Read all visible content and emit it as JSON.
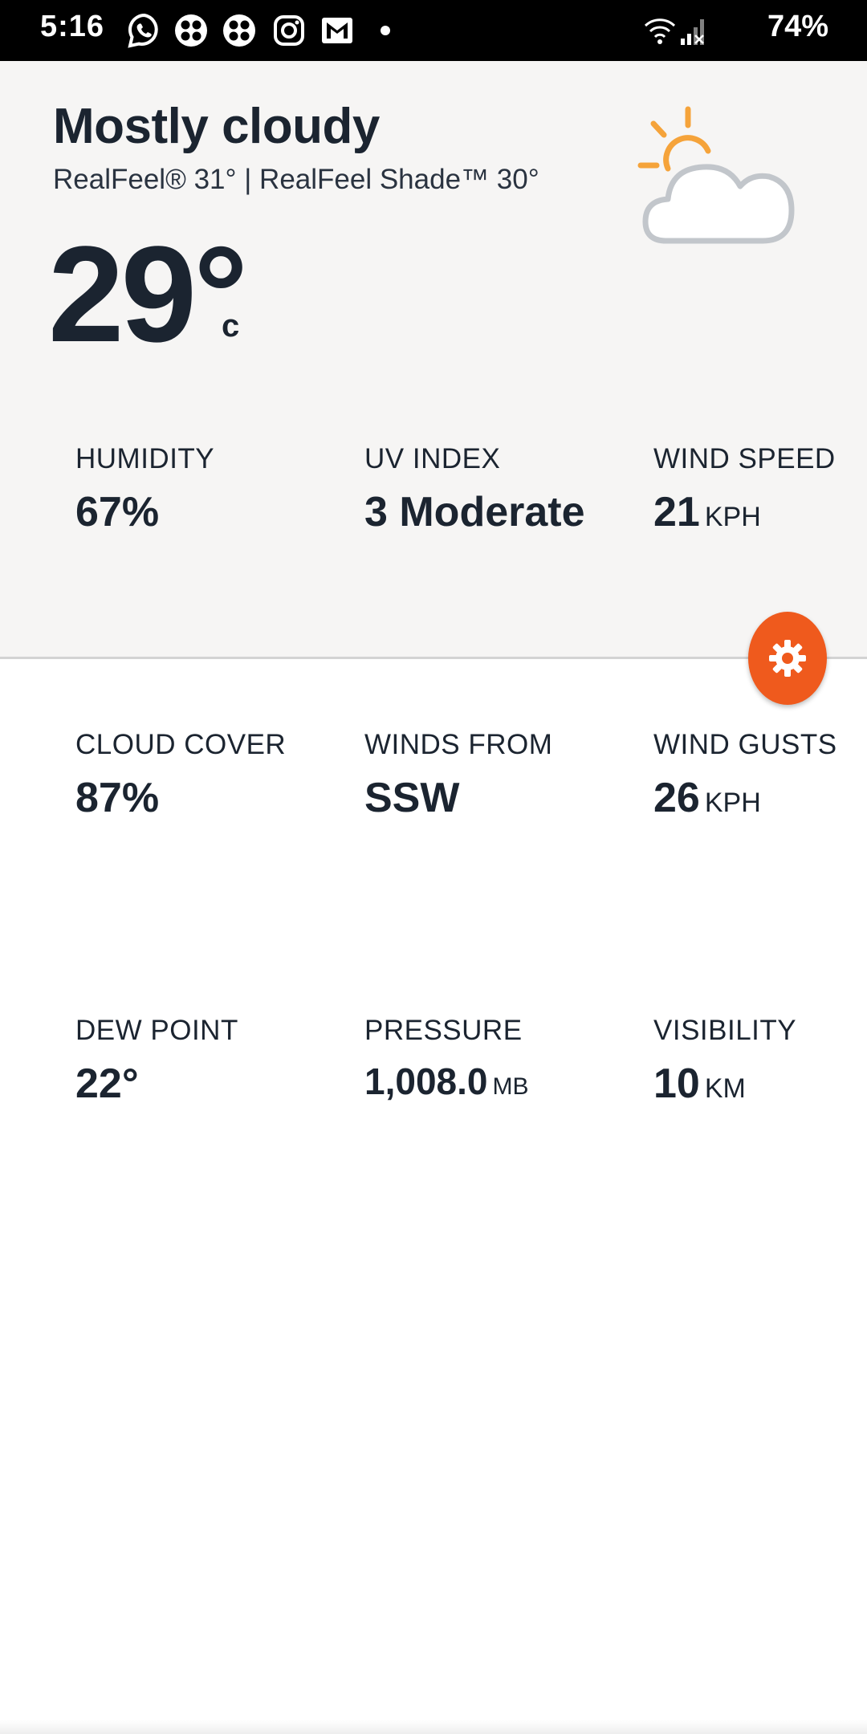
{
  "status_bar": {
    "time": "5:16",
    "battery": "74%",
    "notification_icons": [
      "whatsapp-icon",
      "app-grid-icon",
      "app-grid-icon",
      "instagram-icon",
      "gmail-icon",
      "dot-icon"
    ],
    "system_icons": [
      "wifi-icon",
      "signal-icon"
    ]
  },
  "current": {
    "condition": "Mostly cloudy",
    "realfeel": "RealFeel® 31° | RealFeel Shade™ 30°",
    "temperature": "29°",
    "unit": "c",
    "icon": "partly-cloudy-icon"
  },
  "metrics": [
    {
      "label": "HUMIDITY",
      "value": "67%",
      "unit": ""
    },
    {
      "label": "UV INDEX",
      "value": "3 Moderate",
      "unit": ""
    },
    {
      "label": "WIND SPEED",
      "value": "21",
      "unit": "KPH"
    },
    {
      "label": "CLOUD COVER",
      "value": "87%",
      "unit": ""
    },
    {
      "label": "WINDS FROM",
      "value": "SSW",
      "unit": ""
    },
    {
      "label": "WIND GUSTS",
      "value": "26",
      "unit": "KPH"
    },
    {
      "label": "DEW POINT",
      "value": "22°",
      "unit": ""
    },
    {
      "label": "PRESSURE",
      "value": "1,008.0",
      "unit": "MB"
    },
    {
      "label": "VISIBILITY",
      "value": "10",
      "unit": "KM"
    }
  ],
  "fab": {
    "icon": "gear-icon",
    "color": "#ef5a1d"
  },
  "colors": {
    "accent": "#ef5a1d",
    "sun": "#f5a33a",
    "cloud": "#c2c6cb",
    "text": "#1b2430",
    "panel": "#f6f5f4"
  }
}
